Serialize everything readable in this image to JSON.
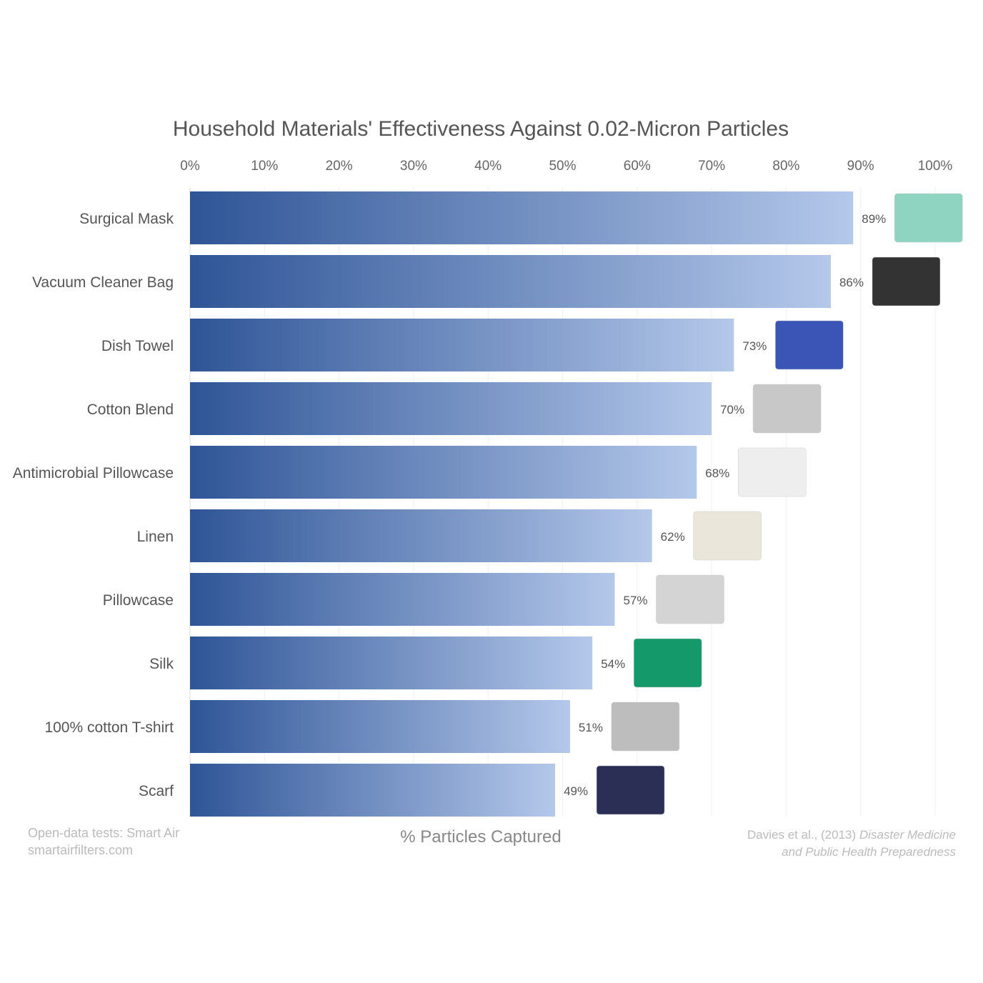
{
  "chart_data": {
    "type": "bar",
    "orientation": "horizontal",
    "title": "Household Materials' Effectiveness Against 0.02-Micron Particles",
    "xlabel": "% Particles Captured",
    "ylabel": "",
    "xlim": [
      0,
      100
    ],
    "x_ticks": [
      "0%",
      "10%",
      "20%",
      "30%",
      "40%",
      "50%",
      "60%",
      "70%",
      "80%",
      "90%",
      "100%"
    ],
    "grid": true,
    "categories": [
      "Surgical Mask",
      "Vacuum Cleaner Bag",
      "Dish Towel",
      "Cotton Blend",
      "Antimicrobial Pillowcase",
      "Linen",
      "Pillowcase",
      "Silk",
      "100% cotton T-shirt",
      "Scarf"
    ],
    "values": [
      89,
      86,
      73,
      70,
      68,
      62,
      57,
      54,
      51,
      49
    ],
    "data_labels": [
      "89%",
      "86%",
      "73%",
      "70%",
      "68%",
      "62%",
      "57%",
      "54%",
      "51%",
      "49%"
    ],
    "bar_gradient": [
      "#2f5597",
      "#b4c8ea"
    ],
    "item_images": [
      "surgical-mask",
      "vacuum-bag",
      "dish-towel",
      "cotton-blend-shirt",
      "pillow",
      "linen-fabric",
      "pillow",
      "green-silk",
      "t-shirt",
      "plaid-scarf"
    ],
    "image_colors": [
      "#8fd3c1",
      "#333333",
      "#3a55b5",
      "#c8c8c8",
      "#eeeeee",
      "#ebe6da",
      "#d4d4d4",
      "#149a6a",
      "#bdbdbd",
      "#2b2f55"
    ]
  },
  "footer": {
    "source_line1": "Open-data tests: Smart Air",
    "source_line2": "smartairfilters.com",
    "citation_plain": "Davies et al., (2013) ",
    "citation_italic1": "Disaster Medicine",
    "citation_italic2": "and Public Health Preparedness"
  }
}
